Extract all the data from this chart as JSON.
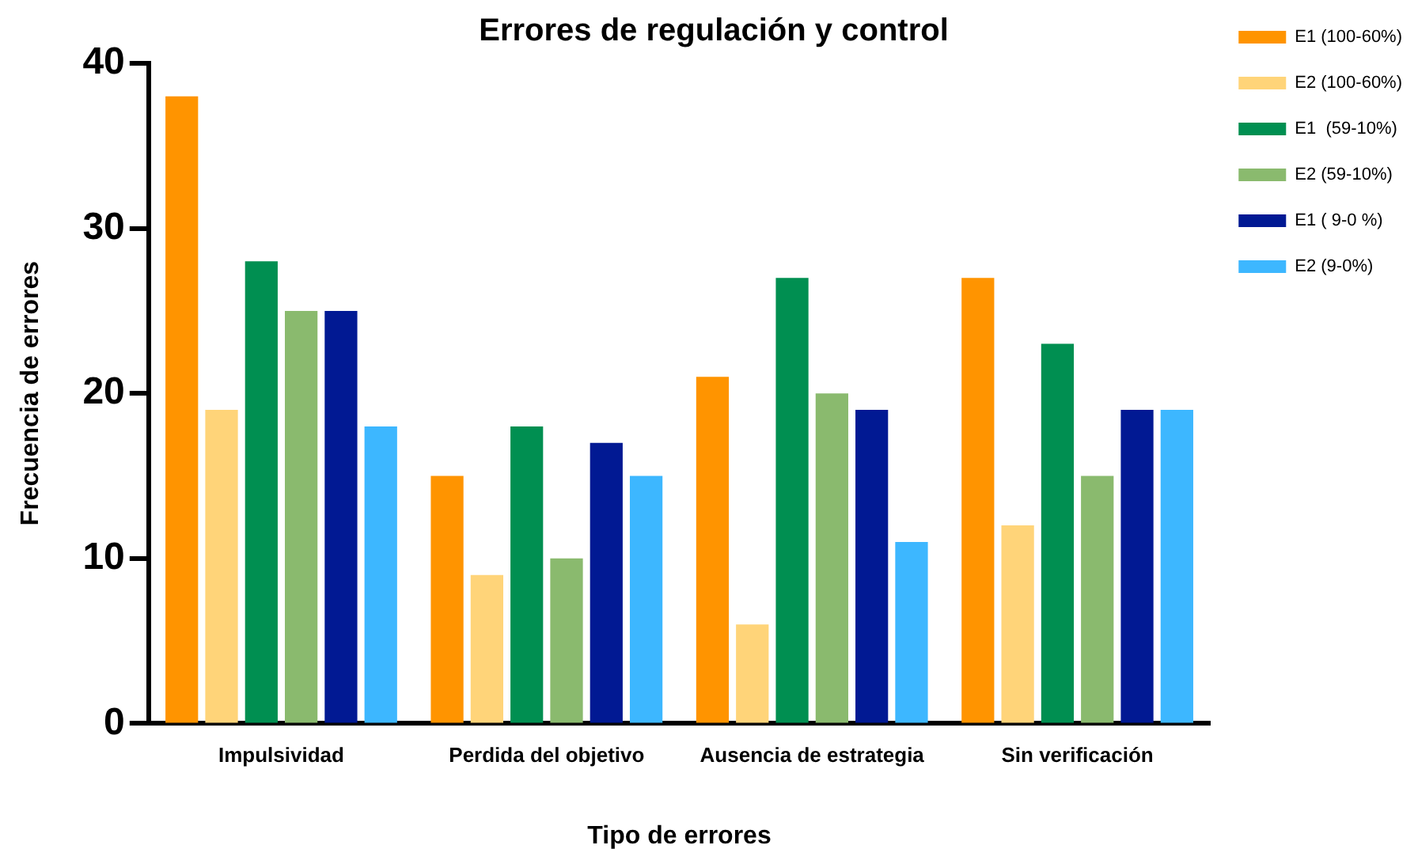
{
  "chart_data": {
    "type": "bar",
    "title": "Errores de regulación y control",
    "xlabel": "Tipo de errores",
    "ylabel": "Frecuencia de errores",
    "categories": [
      "Impulsividad",
      "Perdida del objetivo",
      "Ausencia de estrategia",
      "Sin verificación"
    ],
    "series": [
      {
        "name": "E1 (100-60%)",
        "color": "#ff9400",
        "values": [
          38,
          15,
          21,
          27
        ]
      },
      {
        "name": "E2 (100-60%)",
        "color": "#ffd479",
        "values": [
          19,
          9,
          6,
          12
        ]
      },
      {
        "name": "E1  (59-10%)",
        "color": "#008f51",
        "values": [
          28,
          18,
          27,
          23
        ]
      },
      {
        "name": "E2 (59-10%)",
        "color": "#8aba6e",
        "values": [
          25,
          10,
          20,
          15
        ]
      },
      {
        "name": "E1 ( 9-0 %)",
        "color": "#011993",
        "values": [
          25,
          17,
          19,
          19
        ]
      },
      {
        "name": "E2 (9-0%)",
        "color": "#3db7ff",
        "values": [
          18,
          15,
          11,
          19
        ]
      }
    ],
    "ylim": [
      0,
      40
    ],
    "yticks": [
      0,
      10,
      20,
      30,
      40
    ],
    "grid": false,
    "legend": "top right"
  }
}
